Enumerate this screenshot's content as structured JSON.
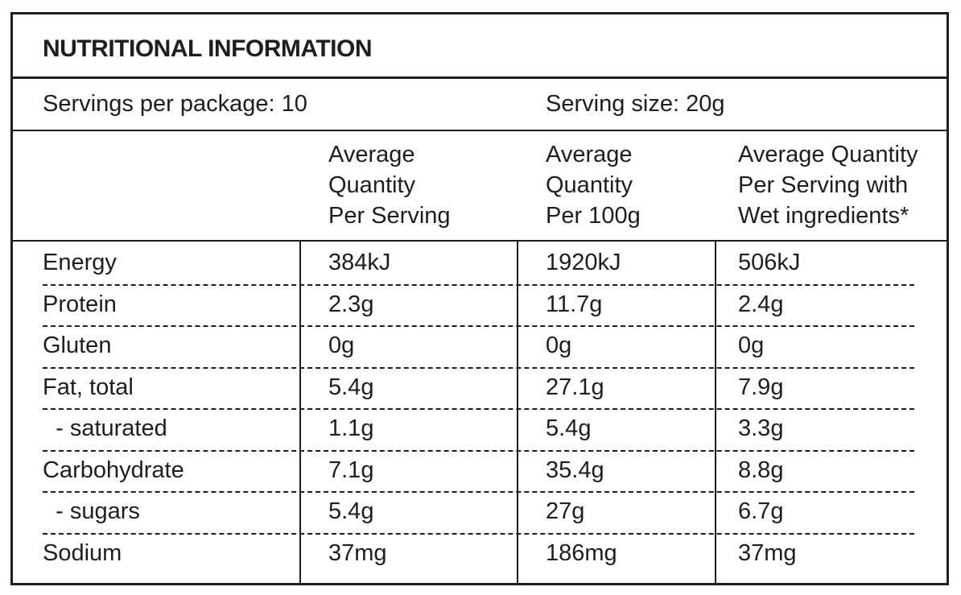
{
  "title": "NUTRITIONAL INFORMATION",
  "servings_per_package": "Servings per package: 10",
  "serving_size": "Serving size: 20g",
  "columns": [
    "Average\nQuantity\nPer Serving",
    "Average\nQuantity\nPer 100g",
    "Average Quantity\nPer Serving with\nWet ingredients*"
  ],
  "rows": [
    {
      "name": "Energy",
      "per_serving": "384kJ",
      "per_100g": "1920kJ",
      "wet": "506kJ"
    },
    {
      "name": "Protein",
      "per_serving": "2.3g",
      "per_100g": "11.7g",
      "wet": "2.4g"
    },
    {
      "name": "Gluten",
      "per_serving": "0g",
      "per_100g": "0g",
      "wet": "0g"
    },
    {
      "name": "Fat, total",
      "per_serving": "5.4g",
      "per_100g": "27.1g",
      "wet": "7.9g"
    },
    {
      "name": "  - saturated",
      "per_serving": "1.1g",
      "per_100g": "5.4g",
      "wet": "3.3g"
    },
    {
      "name": "Carbohydrate",
      "per_serving": "7.1g",
      "per_100g": "35.4g",
      "wet": "8.8g"
    },
    {
      "name": "  - sugars",
      "per_serving": "5.4g",
      "per_100g": "27g",
      "wet": "6.7g"
    },
    {
      "name": "Sodium",
      "per_serving": "37mg",
      "per_100g": "186mg",
      "wet": "37mg"
    }
  ]
}
